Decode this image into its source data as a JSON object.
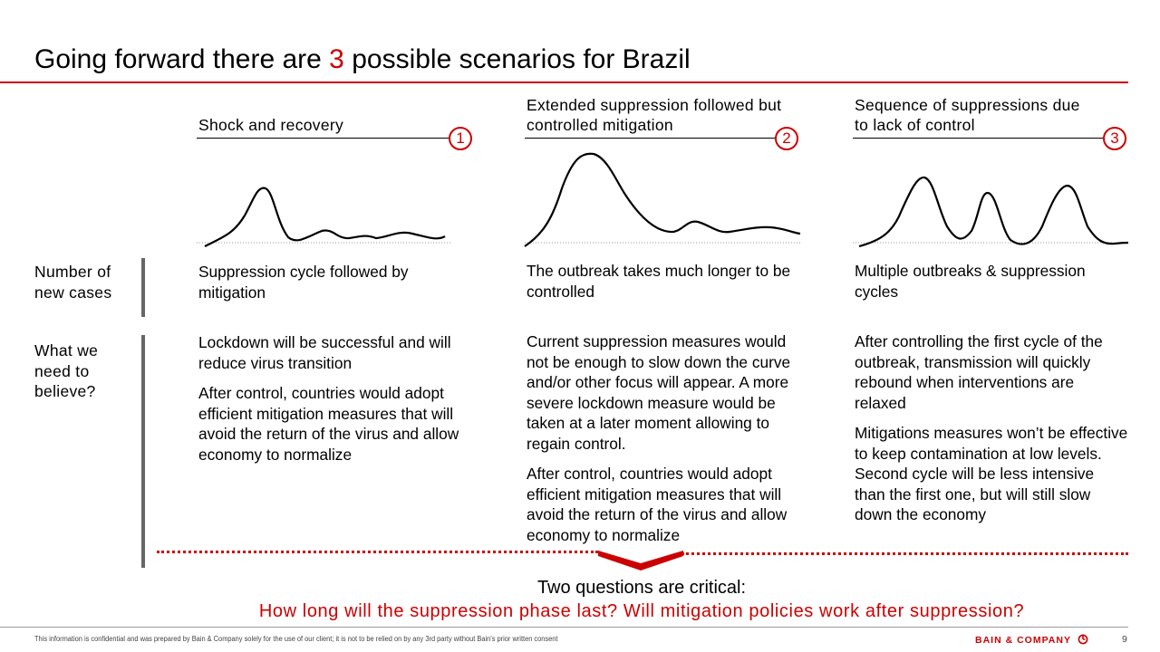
{
  "title": {
    "pre": "Going forward there are ",
    "num": "3",
    "post": " possible scenarios for Brazil"
  },
  "row_labels": {
    "cases": "Number of new cases",
    "believe": "What we need to believe?"
  },
  "scenarios": [
    {
      "title": "Shock and recovery",
      "badge": "1",
      "description": "Suppression cycle followed by mitigation",
      "believe": [
        "Lockdown will be successful and will reduce virus transition",
        "After control, countries would adopt efficient mitigation measures that will avoid the return of the virus and allow economy to normalize"
      ]
    },
    {
      "title": "Extended suppression followed but controlled mitigation",
      "badge": "2",
      "description": "The outbreak takes much longer to be controlled",
      "believe": [
        "Current suppression measures would not be enough to slow down the curve and/or other focus will appear.  A more severe lockdown measure would be taken at a later moment allowing to regain control.",
        "After control, countries would adopt efficient mitigation measures that will avoid the return of the virus and allow economy to normalize"
      ]
    },
    {
      "title": "Sequence of suppressions due to lack of control",
      "badge": "3",
      "description": "Multiple outbreaks & suppression cycles",
      "believe": [
        "After controlling the first cycle of the outbreak, transmission will quickly rebound when interventions are relaxed",
        "Mitigations measures won’t be effective to keep contamination at low levels. Second cycle will be less intensive than the first one, but will still slow down the economy"
      ]
    }
  ],
  "questions": {
    "intro": "Two questions are critical:",
    "main": "How long will the suppression phase last? Will mitigation policies work after suppression?"
  },
  "footer": {
    "disclaimer": "This information is confidential and was prepared by Bain & Company solely for the use of our client; it is not to be relied on by any 3rd party without Bain's prior written consent",
    "logo": "BAIN & COMPANY",
    "page": "9"
  },
  "colors": {
    "accent": "#cc0000",
    "rule": "#666666"
  }
}
